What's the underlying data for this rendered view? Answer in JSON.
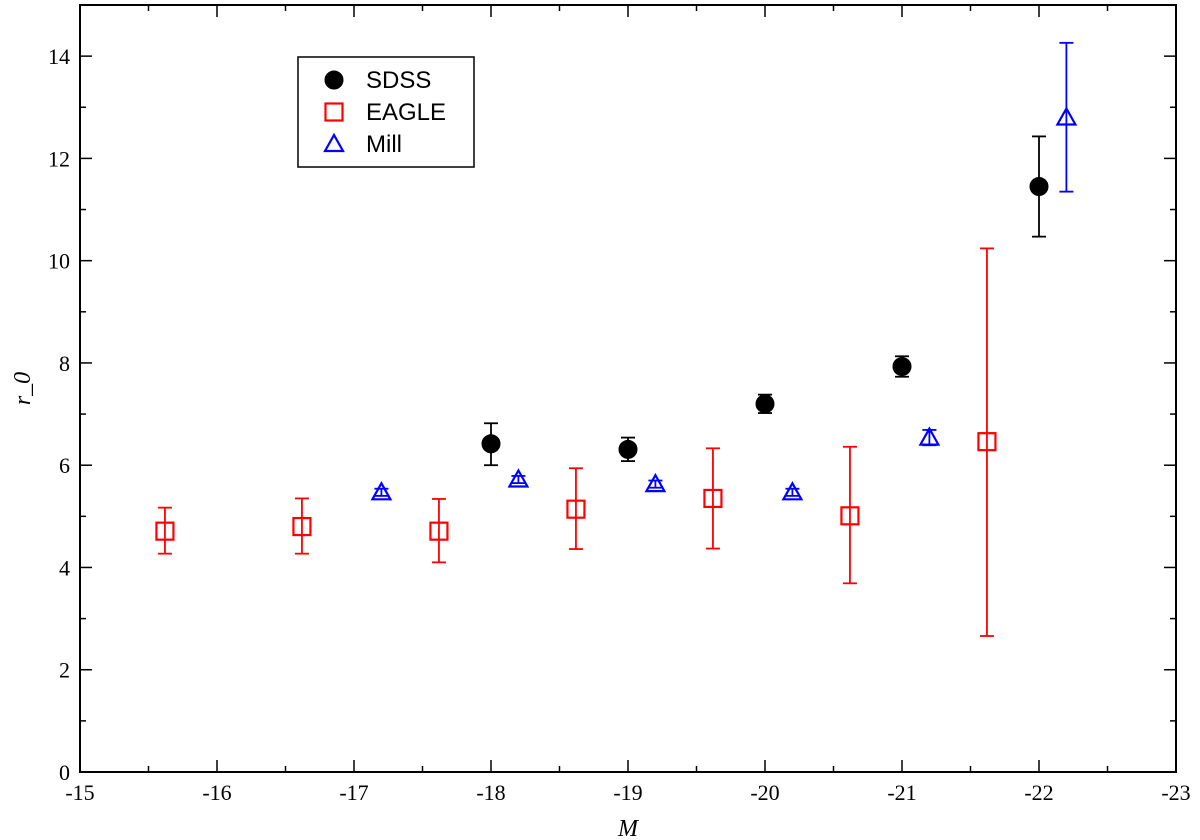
{
  "chart_data": {
    "type": "scatter",
    "title": "",
    "xlabel": "M",
    "ylabel": "r_0",
    "xlim": [
      -15,
      -23
    ],
    "ylim": [
      0,
      15
    ],
    "x_axis_reversed": true,
    "xticks": [
      -15,
      -16,
      -17,
      -18,
      -19,
      -20,
      -21,
      -22,
      -23
    ],
    "xtick_labels": [
      "-15",
      "-16",
      "-17",
      "-18",
      "-19",
      "-20",
      "-21",
      "-22",
      "-23"
    ],
    "yticks": [
      0,
      2,
      4,
      6,
      8,
      10,
      12,
      14
    ],
    "ytick_labels": [
      "0",
      "2",
      "4",
      "6",
      "8",
      "10",
      "12",
      "14"
    ],
    "grid": false,
    "legend_position": "top-left",
    "series": [
      {
        "name": "SDSS",
        "marker": "filled-circle",
        "color": "#000000",
        "points": [
          {
            "x": -18.0,
            "y": 6.42,
            "err_low": 6.0,
            "err_high": 6.82
          },
          {
            "x": -19.0,
            "y": 6.31,
            "err_low": 6.08,
            "err_high": 6.54
          },
          {
            "x": -20.0,
            "y": 7.2,
            "err_low": 7.02,
            "err_high": 7.38
          },
          {
            "x": -21.0,
            "y": 7.93,
            "err_low": 7.73,
            "err_high": 8.13
          },
          {
            "x": -22.0,
            "y": 11.45,
            "err_low": 10.47,
            "err_high": 12.43
          }
        ]
      },
      {
        "name": "EAGLE",
        "marker": "open-square",
        "color": "#ff0000",
        "points": [
          {
            "x": -15.62,
            "y": 4.71,
            "err_low": 4.27,
            "err_high": 5.17
          },
          {
            "x": -16.62,
            "y": 4.8,
            "err_low": 4.27,
            "err_high": 5.35
          },
          {
            "x": -17.62,
            "y": 4.71,
            "err_low": 4.1,
            "err_high": 5.34
          },
          {
            "x": -18.62,
            "y": 5.14,
            "err_low": 4.36,
            "err_high": 5.94
          },
          {
            "x": -19.62,
            "y": 5.35,
            "err_low": 4.37,
            "err_high": 6.33
          },
          {
            "x": -20.62,
            "y": 5.01,
            "err_low": 3.69,
            "err_high": 6.36
          },
          {
            "x": -21.62,
            "y": 6.46,
            "err_low": 2.66,
            "err_high": 10.24
          }
        ]
      },
      {
        "name": "Mill",
        "marker": "open-triangle",
        "color": "#0000ff",
        "points": [
          {
            "x": -17.2,
            "y": 5.47,
            "err_low": 5.4,
            "err_high": 5.54
          },
          {
            "x": -18.2,
            "y": 5.72,
            "err_low": 5.65,
            "err_high": 5.79
          },
          {
            "x": -19.2,
            "y": 5.63,
            "err_low": 5.56,
            "err_high": 5.7
          },
          {
            "x": -20.2,
            "y": 5.47,
            "err_low": 5.4,
            "err_high": 5.54
          },
          {
            "x": -21.2,
            "y": 6.54,
            "err_low": 6.39,
            "err_high": 6.69
          },
          {
            "x": -22.2,
            "y": 12.8,
            "err_low": 11.35,
            "err_high": 14.26
          }
        ]
      }
    ]
  }
}
